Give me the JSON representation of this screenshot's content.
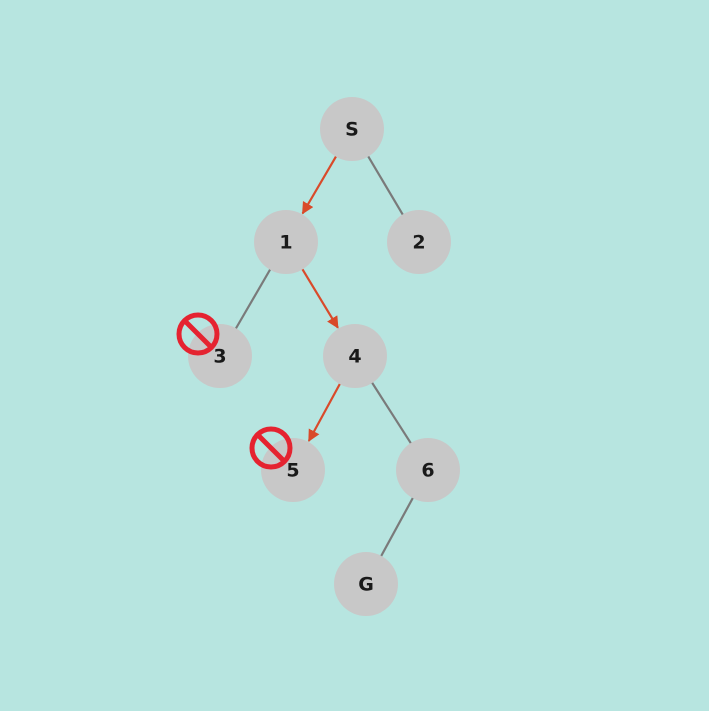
{
  "colors": {
    "background": "#b7e5e0",
    "node_fill": "#c8c8c8",
    "edge": "#7a7a7a",
    "path_edge": "#d94a2a",
    "blocked": "#e52330",
    "label": "#1a1a1a"
  },
  "nodes": [
    {
      "id": "S",
      "label": "S",
      "blocked": false
    },
    {
      "id": "1",
      "label": "1",
      "blocked": false
    },
    {
      "id": "2",
      "label": "2",
      "blocked": false
    },
    {
      "id": "3",
      "label": "3",
      "blocked": true
    },
    {
      "id": "4",
      "label": "4",
      "blocked": false
    },
    {
      "id": "5",
      "label": "5",
      "blocked": true
    },
    {
      "id": "6",
      "label": "6",
      "blocked": false
    },
    {
      "id": "G",
      "label": "G",
      "blocked": false
    }
  ],
  "edges": [
    {
      "from": "S",
      "to": "1",
      "path": true
    },
    {
      "from": "S",
      "to": "2",
      "path": false
    },
    {
      "from": "1",
      "to": "3",
      "path": false
    },
    {
      "from": "1",
      "to": "4",
      "path": true
    },
    {
      "from": "4",
      "to": "5",
      "path": true
    },
    {
      "from": "4",
      "to": "6",
      "path": false
    },
    {
      "from": "6",
      "to": "G",
      "path": false
    }
  ],
  "blocked_icon": "prohibited-icon"
}
